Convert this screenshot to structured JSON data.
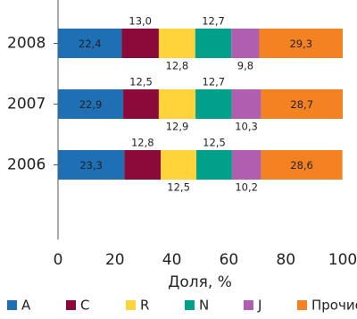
{
  "chart_data": {
    "type": "stacked-bar-horizontal",
    "categories": [
      "2008",
      "2007",
      "2006"
    ],
    "series": [
      {
        "name": "A",
        "color": "#1f6fb5",
        "values": [
          22.4,
          22.9,
          23.3
        ],
        "value_labels": [
          "22,4",
          "22,9",
          "23,3"
        ]
      },
      {
        "name": "C",
        "color": "#8b0a3a",
        "values": [
          13.0,
          12.5,
          12.8
        ],
        "value_labels": [
          "13,0",
          "12,5",
          "12,8"
        ]
      },
      {
        "name": "R",
        "color": "#ffd43b",
        "values": [
          12.8,
          12.9,
          12.5
        ],
        "value_labels": [
          "12,8",
          "12,9",
          "12,5"
        ]
      },
      {
        "name": "N",
        "color": "#00a08a",
        "values": [
          12.7,
          12.7,
          12.5
        ],
        "value_labels": [
          "12,7",
          "12,7",
          "12,5"
        ]
      },
      {
        "name": "J",
        "color": "#b05fb0",
        "values": [
          9.8,
          10.3,
          10.2
        ],
        "value_labels": [
          "9,8",
          "10,3",
          "10,2"
        ]
      },
      {
        "name": "Прочие",
        "color": "#f58220",
        "values": [
          29.3,
          28.7,
          28.6
        ],
        "value_labels": [
          "29,3",
          "28,7",
          "28,6"
        ]
      }
    ],
    "xlabel": "Доля, %",
    "xlim": [
      0,
      100
    ],
    "xticks": [
      0,
      20,
      40,
      60,
      80,
      100
    ]
  }
}
